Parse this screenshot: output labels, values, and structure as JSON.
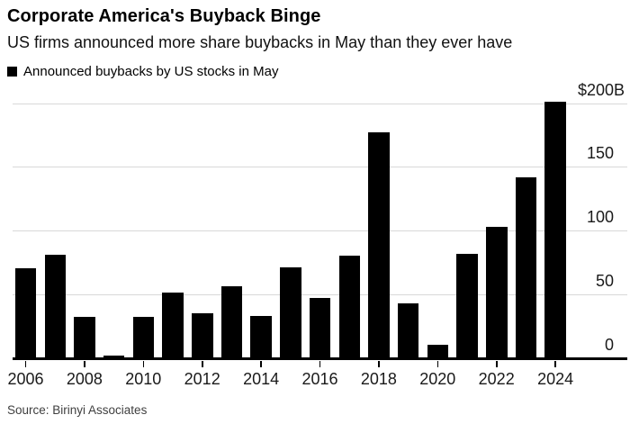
{
  "header": {
    "title": "Corporate America's Buyback Binge",
    "subtitle": "US firms announced more share buybacks in May than they ever have"
  },
  "legend": {
    "label": "Announced buybacks by US stocks in May",
    "swatch_color": "#000000"
  },
  "source": "Source: Birinyi Associates",
  "colors": {
    "bar": "#000000",
    "gridline": "#d8d8d8",
    "axis": "#000000",
    "text": "#000000",
    "source_text": "#3f3f3f",
    "background": "#ffffff"
  },
  "chart_data": {
    "type": "bar",
    "title": "Corporate America's Buyback Binge",
    "subtitle": "US firms announced more share buybacks in May than they ever have",
    "series_name": "Announced buybacks by US stocks in May",
    "unit": "USD billions",
    "x": [
      2006,
      2007,
      2008,
      2009,
      2010,
      2011,
      2012,
      2013,
      2014,
      2015,
      2016,
      2017,
      2018,
      2019,
      2020,
      2021,
      2022,
      2023,
      2024
    ],
    "values": [
      70,
      81,
      32,
      2,
      32,
      51,
      35,
      56,
      33,
      71,
      47,
      80,
      177,
      43,
      10,
      82,
      103,
      142,
      201
    ],
    "x_tick_years": [
      2006,
      2008,
      2010,
      2012,
      2014,
      2016,
      2018,
      2020,
      2022,
      2024
    ],
    "y_ticks": [
      {
        "value": 0,
        "label": "0"
      },
      {
        "value": 50,
        "label": "50"
      },
      {
        "value": 100,
        "label": "100"
      },
      {
        "value": 150,
        "label": "150"
      },
      {
        "value": 200,
        "label": "$200B"
      }
    ],
    "y_gridlines": [
      50,
      100,
      150,
      200
    ],
    "ylim": [
      0,
      210
    ],
    "grid": "horizontal",
    "y_axis_side": "right",
    "legend_position": "top-left",
    "source": "Source: Birinyi Associates"
  }
}
